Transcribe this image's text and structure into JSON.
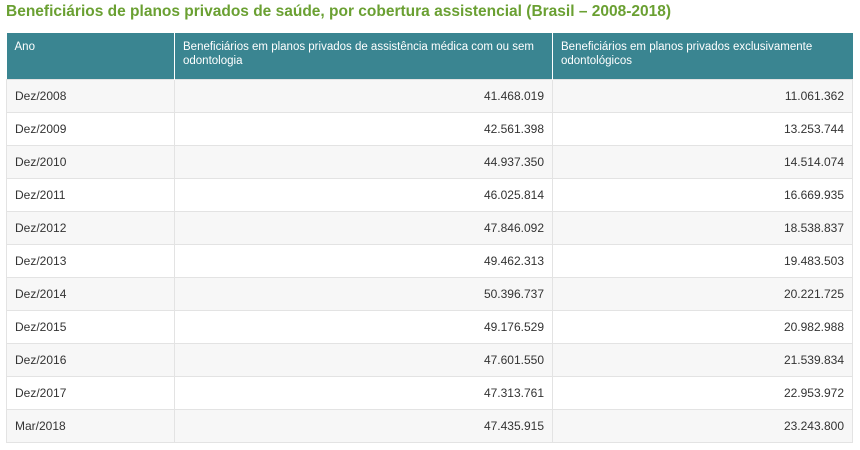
{
  "title": "Beneficiários de planos privados de saúde, por cobertura assistencial (Brasil – 2008-2018)",
  "colors": {
    "title": "#6aa032",
    "header_bg": "#3a8591",
    "row_alt_bg": "#f7f7f7"
  },
  "chart_data": {
    "type": "table",
    "title": "Beneficiários de planos privados de saúde, por cobertura assistencial (Brasil – 2008-2018)",
    "columns": [
      "Ano",
      "Beneficiários em planos privados de assistência médica com ou sem odontologia",
      "Beneficiários em planos privados exclusivamente odontológicos"
    ],
    "rows": [
      [
        "Dez/2008",
        "41.468.019",
        "11.061.362"
      ],
      [
        "Dez/2009",
        "42.561.398",
        "13.253.744"
      ],
      [
        "Dez/2010",
        "44.937.350",
        "14.514.074"
      ],
      [
        "Dez/2011",
        "46.025.814",
        "16.669.935"
      ],
      [
        "Dez/2012",
        "47.846.092",
        "18.538.837"
      ],
      [
        "Dez/2013",
        "49.462.313",
        "19.483.503"
      ],
      [
        "Dez/2014",
        "50.396.737",
        "20.221.725"
      ],
      [
        "Dez/2015",
        "49.176.529",
        "20.982.988"
      ],
      [
        "Dez/2016",
        "47.601.550",
        "21.539.834"
      ],
      [
        "Dez/2017",
        "47.313.761",
        "22.953.972"
      ],
      [
        "Mar/2018",
        "47.435.915",
        "23.243.800"
      ]
    ]
  }
}
